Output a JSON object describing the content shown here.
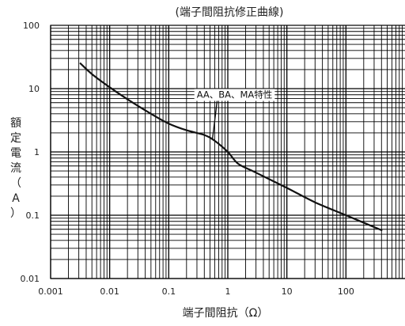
{
  "chart_data": {
    "type": "line",
    "title": "(端子間阻抗修正曲線)",
    "xlabel": "端子間阻抗（Ω）",
    "ylabel_chars": [
      "額",
      "定",
      "電",
      "流",
      "（",
      "A",
      "）"
    ],
    "x_scale": "log",
    "y_scale": "log",
    "xlim": [
      0.001,
      1000
    ],
    "ylim": [
      0.01,
      100
    ],
    "x_ticks": [
      {
        "v": 0.001,
        "label": "0.001"
      },
      {
        "v": 0.01,
        "label": "0.01"
      },
      {
        "v": 0.1,
        "label": "0.1"
      },
      {
        "v": 1,
        "label": "1"
      },
      {
        "v": 10,
        "label": "10"
      },
      {
        "v": 100,
        "label": "100"
      }
    ],
    "y_ticks": [
      {
        "v": 0.01,
        "label": "0.01"
      },
      {
        "v": 0.1,
        "label": "0.1"
      },
      {
        "v": 1,
        "label": "1"
      },
      {
        "v": 10,
        "label": "10"
      },
      {
        "v": 100,
        "label": "100"
      }
    ],
    "grid": true,
    "series": [
      {
        "name": "AA、BA、MA特性",
        "x": [
          0.0032,
          0.005,
          0.01,
          0.02,
          0.05,
          0.1,
          0.2,
          0.4,
          0.6,
          1.0,
          1.5,
          3,
          10,
          30,
          100,
          400
        ],
        "y": [
          25,
          17,
          10.5,
          6.8,
          4.0,
          2.8,
          2.2,
          1.85,
          1.5,
          1.0,
          0.65,
          0.47,
          0.27,
          0.16,
          0.1,
          0.058
        ]
      }
    ],
    "annotation": {
      "text": "AA、BA、MA特性",
      "label_x": 1.3,
      "label_y": 7.2,
      "point_x": 0.55,
      "point_y": 1.6
    }
  }
}
